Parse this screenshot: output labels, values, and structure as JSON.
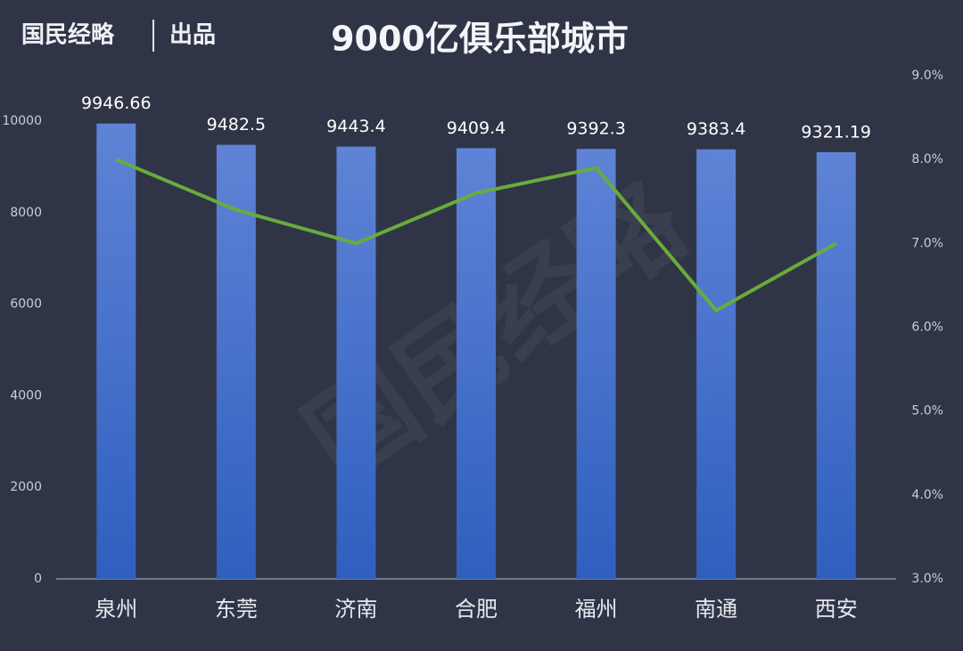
{
  "chart_data": {
    "type": "bar",
    "title": "9000亿俱乐部城市",
    "source": "国民经略",
    "source_suffix": "出品",
    "categories": [
      "泉州",
      "东莞",
      "济南",
      "合肥",
      "福州",
      "南通",
      "西安"
    ],
    "series": [
      {
        "type": "bar",
        "color": "#4d74cf",
        "values": [
          9946.66,
          9482.5,
          9443.4,
          9409.4,
          9392.3,
          9383.4,
          9321.19
        ]
      },
      {
        "type": "line",
        "axis": "y2",
        "color": "#6aab3c",
        "values": [
          8.0,
          7.4,
          7.0,
          7.6,
          7.9,
          6.2,
          7.0
        ]
      }
    ],
    "ylim": [
      0,
      10000
    ],
    "yticks": [
      0,
      2000,
      4000,
      6000,
      8000,
      10000
    ],
    "y2lim": [
      3.0,
      9.0
    ],
    "y2ticks": [
      {
        "value": 3.0,
        "label": "3.0%"
      },
      {
        "value": 4.0,
        "label": "4.0%"
      },
      {
        "value": 5.0,
        "label": "5.0%"
      },
      {
        "value": 6.0,
        "label": "6.0%"
      },
      {
        "value": 7.0,
        "label": "7.0%"
      },
      {
        "value": 8.0,
        "label": "8.0%"
      },
      {
        "value": 9.0,
        "label": "9.0%"
      }
    ],
    "grid": false
  }
}
